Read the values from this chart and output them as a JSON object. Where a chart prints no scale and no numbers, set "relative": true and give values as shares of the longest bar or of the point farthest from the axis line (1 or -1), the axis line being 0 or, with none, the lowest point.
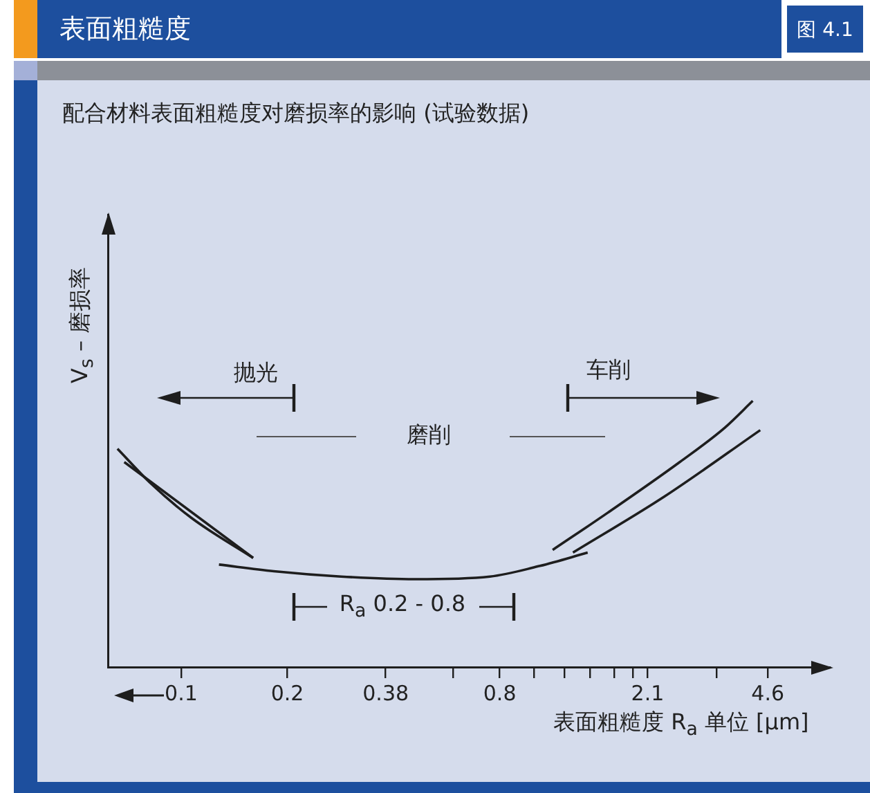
{
  "chart_data": {
    "type": "line",
    "title": "表面粗糙度",
    "subtitle": "配合材料表面粗糙度对磨损率的影响 (试验数据)",
    "xlabel": "表面粗糙度 R$_{a}$ 单位 [μm]",
    "ylabel": "V$_{s}$ – 磨损率",
    "relative": true,
    "log": "x",
    "xlim": [
      0.062,
      6.9
    ],
    "xticks": [
      0.1,
      0.2,
      0.38,
      {
        "value": 0.59,
        "label": null
      },
      0.8,
      {
        "value": 1.0,
        "label": null
      },
      {
        "value": 1.22,
        "label": null
      },
      {
        "value": 1.44,
        "label": null
      },
      {
        "value": 1.69,
        "label": null
      },
      {
        "value": 1.91,
        "label": null
      },
      2.1,
      {
        "value": 3.3,
        "label": null
      },
      4.6
    ],
    "series": [
      {
        "color": "#1e1e1e",
        "x": [
          0.066,
          0.082,
          0.107,
          0.16
        ],
        "values": [
          0.82,
          0.69,
          0.56,
          0.41
        ]
      },
      {
        "color": "#1e1e1e",
        "x": [
          0.069,
          0.16
        ],
        "values": [
          0.77,
          0.41
        ]
      },
      {
        "color": "#1e1e1e",
        "x": [
          0.128,
          0.183,
          0.284,
          0.46,
          0.75,
          1.04,
          1.42
        ],
        "values": [
          0.385,
          0.36,
          0.34,
          0.33,
          0.34,
          0.38,
          0.43
        ]
      },
      {
        "color": "#1e1e1e",
        "x": [
          1.13,
          1.62,
          2.59,
          3.48,
          4.17
        ],
        "values": [
          0.44,
          0.58,
          0.77,
          0.9,
          1.0
        ]
      },
      {
        "color": "#1e1e1e",
        "x": [
          1.29,
          2.34,
          4.38
        ],
        "values": [
          0.43,
          0.64,
          0.89
        ]
      }
    ],
    "annotations": [
      "图 4.1",
      "抛光",
      "磨削",
      "车削",
      "R$_{a}$ 0.2 - 0.8"
    ]
  }
}
